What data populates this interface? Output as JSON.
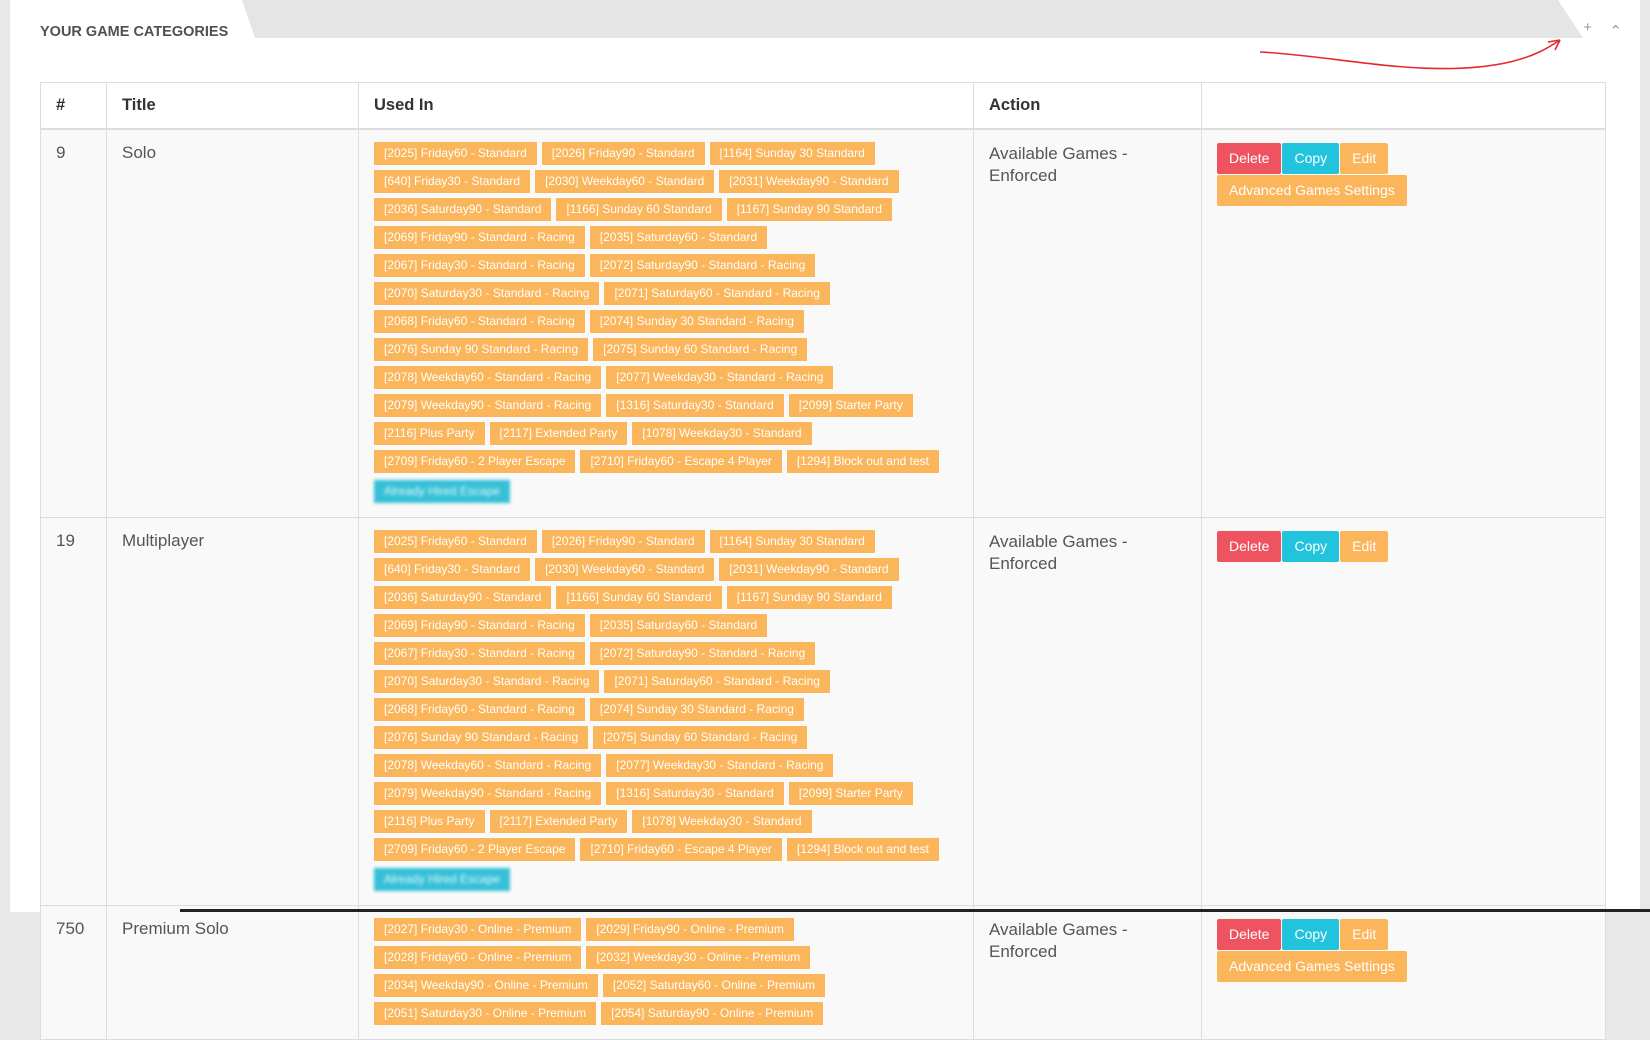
{
  "panel": {
    "title": "YOUR GAME CATEGORIES",
    "tools": {
      "expand_icon": "plus-icon",
      "collapse_icon": "chevron-up-icon",
      "expand_glyph": "+",
      "collapse_glyph": "⌃"
    }
  },
  "table": {
    "headers": {
      "num": "#",
      "title": "Title",
      "used_in": "Used In",
      "action": "Action",
      "buttons": ""
    },
    "buttons": {
      "delete": "Delete",
      "copy": "Copy",
      "edit": "Edit",
      "advanced": "Advanced Games Settings"
    },
    "rows": [
      {
        "num": "9",
        "title": "Solo",
        "action": "Available Games - Enforced",
        "has_advanced": true,
        "tags": [
          "[2025] Friday60 - Standard",
          "[2026] Friday90 - Standard",
          "[1164] Sunday 30 Standard",
          "[640] Friday30 - Standard",
          "[2030] Weekday60 - Standard",
          "[2031] Weekday90 - Standard",
          "[2036] Saturday90 - Standard",
          "[1166] Sunday 60 Standard",
          "[1167] Sunday 90 Standard",
          "[2069] Friday90 - Standard - Racing",
          "[2035] Saturday60 - Standard",
          "[2067] Friday30 - Standard - Racing",
          "[2072] Saturday90 - Standard - Racing",
          "[2070] Saturday30 - Standard - Racing",
          "[2071] Saturday60 - Standard - Racing",
          "[2068] Friday60 - Standard - Racing",
          "[2074] Sunday 30 Standard - Racing",
          "[2076] Sunday 90 Standard - Racing",
          "[2075] Sunday 60 Standard - Racing",
          "[2078] Weekday60 - Standard - Racing",
          "[2077] Weekday30 - Standard - Racing",
          "[2079] Weekday90 - Standard - Racing",
          "[1316] Saturday30 - Standard",
          "[2099] Starter Party",
          "[2116] Plus Party",
          "[2117] Extended Party",
          "[1078] Weekday30 - Standard",
          "[2709] Friday60 - 2 Player Escape",
          "[2710] Friday60 - Escape 4 Player",
          "[1294] Block out and test"
        ],
        "blurred_tag": "Already Hired Escape"
      },
      {
        "num": "19",
        "title": "Multiplayer",
        "action": "Available Games - Enforced",
        "has_advanced": false,
        "tags": [
          "[2025] Friday60 - Standard",
          "[2026] Friday90 - Standard",
          "[1164] Sunday 30 Standard",
          "[640] Friday30 - Standard",
          "[2030] Weekday60 - Standard",
          "[2031] Weekday90 - Standard",
          "[2036] Saturday90 - Standard",
          "[1166] Sunday 60 Standard",
          "[1167] Sunday 90 Standard",
          "[2069] Friday90 - Standard - Racing",
          "[2035] Saturday60 - Standard",
          "[2067] Friday30 - Standard - Racing",
          "[2072] Saturday90 - Standard - Racing",
          "[2070] Saturday30 - Standard - Racing",
          "[2071] Saturday60 - Standard - Racing",
          "[2068] Friday60 - Standard - Racing",
          "[2074] Sunday 30 Standard - Racing",
          "[2076] Sunday 90 Standard - Racing",
          "[2075] Sunday 60 Standard - Racing",
          "[2078] Weekday60 - Standard - Racing",
          "[2077] Weekday30 - Standard - Racing",
          "[2079] Weekday90 - Standard - Racing",
          "[1316] Saturday30 - Standard",
          "[2099] Starter Party",
          "[2116] Plus Party",
          "[2117] Extended Party",
          "[1078] Weekday30 - Standard",
          "[2709] Friday60 - 2 Player Escape",
          "[2710] Friday60 - Escape 4 Player",
          "[1294] Block out and test"
        ],
        "blurred_tag": "Already Hired Escape"
      },
      {
        "num": "750",
        "title": "Premium Solo",
        "action": "Available Games - Enforced",
        "has_advanced": true,
        "tags": [
          "[2027] Friday30 - Online - Premium",
          "[2029] Friday90 - Online - Premium",
          "[2028] Friday60 - Online - Premium",
          "[2032] Weekday30 - Online - Premium",
          "[2034] Weekday90 - Online - Premium",
          "[2052] Saturday60 - Online - Premium",
          "[2051] Saturday30 - Online - Premium",
          "[2054] Saturday90 - Online - Premium"
        ],
        "blurred_tag": ""
      }
    ]
  },
  "colors": {
    "tag": "#fbb55a",
    "delete": "#ee5460",
    "copy": "#22c4dd",
    "edit": "#fbb55a",
    "blurred_tag": "#35c0d7",
    "annotation_arrow": "#e8262d"
  }
}
